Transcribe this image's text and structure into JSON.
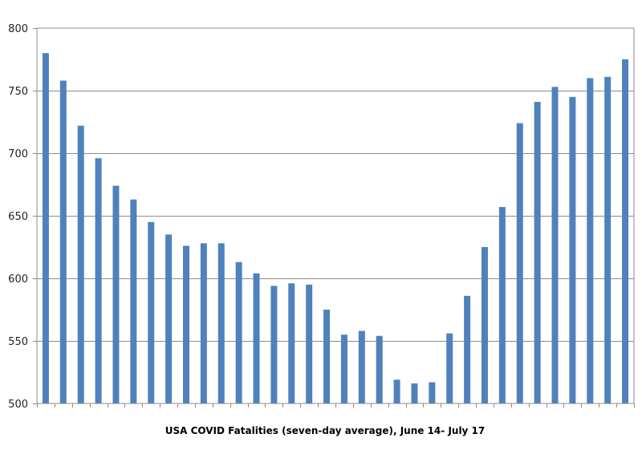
{
  "chart_data": {
    "type": "bar",
    "title": "",
    "xlabel": "USA COVID Fatalities (seven-day average), June 14- July 17",
    "ylabel": "",
    "ylim": [
      500,
      800
    ],
    "yticks": [
      500,
      550,
      600,
      650,
      700,
      750,
      800
    ],
    "grid": true,
    "bar_color": "#4f81bd",
    "values": [
      780,
      758,
      722,
      696,
      674,
      663,
      645,
      635,
      626,
      628,
      628,
      613,
      604,
      594,
      596,
      595,
      575,
      555,
      558,
      554,
      519,
      516,
      517,
      556,
      586,
      625,
      657,
      724,
      741,
      753,
      745,
      760,
      761,
      775
    ]
  }
}
